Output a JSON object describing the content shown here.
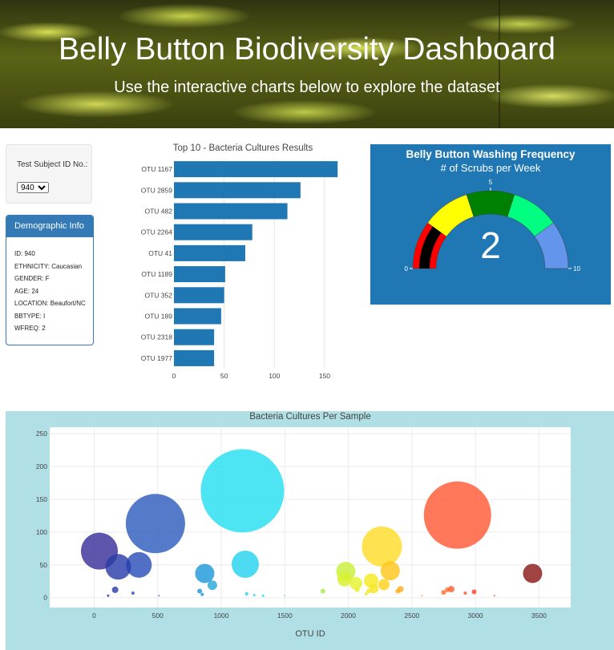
{
  "header": {
    "title": "Belly Button Biodiversity Dashboard",
    "subtitle": "Use the interactive charts below to explore the dataset"
  },
  "selector": {
    "label": "Test Subject ID No.:",
    "selected": "940"
  },
  "demographics": {
    "title": "Demographic Info",
    "rows": [
      "ID: 940",
      "ETHNICITY: Caucasian",
      "GENDER: F",
      "AGE: 24",
      "LOCATION: Beaufort/NC",
      "BBTYPE: I",
      "WFREQ: 2"
    ]
  },
  "colors": {
    "bar": "#1f77b4",
    "panel_blue": "#337ab7",
    "gauge_bg": "#1f77b4",
    "bubble_bg": "#b0dfe5"
  },
  "chart_data": [
    {
      "type": "bar",
      "orientation": "horizontal",
      "title": "Top 10 - Bacteria Cultures Results",
      "categories": [
        "OTU 1167",
        "OTU 2859",
        "OTU 482",
        "OTU 2264",
        "OTU 41",
        "OTU 1189",
        "OTU 352",
        "OTU 189",
        "OTU 2318",
        "OTU 1977"
      ],
      "values": [
        163,
        126,
        113,
        78,
        71,
        51,
        50,
        47,
        40,
        40
      ],
      "xlim": [
        0,
        170
      ],
      "xticks": [
        "0",
        "50",
        "100",
        "150"
      ],
      "grid": true
    },
    {
      "type": "gauge",
      "title": "Belly Button Washing Frequency",
      "subtitle": "# of Scrubs per Week",
      "value": 2,
      "range": [
        0,
        10
      ],
      "tick_labels": [
        "0",
        "5",
        "10"
      ],
      "bands": [
        "#ff0000",
        "#ffff00",
        "#008000",
        "#00ff80",
        "#6495ed"
      ]
    },
    {
      "type": "scatter",
      "variant": "bubble",
      "title": "Bacteria Cultures Per Sample",
      "xlabel": "OTU ID",
      "xlim": [
        -350,
        3750
      ],
      "ylim": [
        -15,
        260
      ],
      "xticks": [
        "0",
        "500",
        "1000",
        "1500",
        "2000",
        "2500",
        "3000",
        "3500"
      ],
      "yticks": [
        "0",
        "50",
        "100",
        "150",
        "200",
        "250"
      ],
      "points": [
        {
          "x": 1167,
          "y": 163,
          "r": 52,
          "color": "#26dff0"
        },
        {
          "x": 2859,
          "y": 126,
          "r": 42,
          "color": "#ff5a36"
        },
        {
          "x": 482,
          "y": 113,
          "r": 37,
          "color": "#2f5dbd"
        },
        {
          "x": 2264,
          "y": 78,
          "r": 25,
          "color": "#ffdc2a"
        },
        {
          "x": 41,
          "y": 71,
          "r": 23,
          "color": "#3a2f9a"
        },
        {
          "x": 1189,
          "y": 51,
          "r": 17,
          "color": "#26d3ee"
        },
        {
          "x": 352,
          "y": 50,
          "r": 16,
          "color": "#2a4fb8"
        },
        {
          "x": 189,
          "y": 47,
          "r": 16,
          "color": "#2b3da8"
        },
        {
          "x": 3450,
          "y": 37,
          "r": 12,
          "color": "#8b1a1a"
        },
        {
          "x": 870,
          "y": 37,
          "r": 12,
          "color": "#1f98d8"
        },
        {
          "x": 1980,
          "y": 40,
          "r": 12,
          "color": "#c9ef3a"
        },
        {
          "x": 2330,
          "y": 41,
          "r": 12,
          "color": "#ffc61a"
        },
        {
          "x": 1970,
          "y": 28,
          "r": 9,
          "color": "#d8f22e"
        },
        {
          "x": 2060,
          "y": 22,
          "r": 8,
          "color": "#e4f230"
        },
        {
          "x": 2180,
          "y": 26,
          "r": 9,
          "color": "#f5ea20"
        },
        {
          "x": 2280,
          "y": 20,
          "r": 7,
          "color": "#ffd21c"
        },
        {
          "x": 930,
          "y": 19,
          "r": 6,
          "color": "#2aa9dc"
        },
        {
          "x": 2200,
          "y": 14,
          "r": 6,
          "color": "#f7e424"
        },
        {
          "x": 2410,
          "y": 13,
          "r": 4,
          "color": "#ffb020"
        },
        {
          "x": 2390,
          "y": 10,
          "r": 3,
          "color": "#ffae20"
        },
        {
          "x": 2780,
          "y": 12,
          "r": 3,
          "color": "#ff6a30"
        },
        {
          "x": 2810,
          "y": 13,
          "r": 4,
          "color": "#ff6030"
        },
        {
          "x": 2990,
          "y": 9,
          "r": 3,
          "color": "#ff4030"
        },
        {
          "x": 2750,
          "y": 8,
          "r": 3,
          "color": "#ff7030"
        },
        {
          "x": 2920,
          "y": 7,
          "r": 2,
          "color": "#ff5030"
        },
        {
          "x": 2070,
          "y": 12,
          "r": 3,
          "color": "#e8f030"
        },
        {
          "x": 2160,
          "y": 10,
          "r": 3,
          "color": "#f2ec28"
        },
        {
          "x": 2140,
          "y": 6,
          "r": 2,
          "color": "#f0ea28"
        },
        {
          "x": 1800,
          "y": 10,
          "r": 3,
          "color": "#a8ec4a"
        },
        {
          "x": 165,
          "y": 12,
          "r": 4,
          "color": "#2b3da8"
        },
        {
          "x": 305,
          "y": 7,
          "r": 2,
          "color": "#2a4fb8"
        },
        {
          "x": 830,
          "y": 10,
          "r": 3,
          "color": "#1f98d8"
        },
        {
          "x": 850,
          "y": 5,
          "r": 2,
          "color": "#1f98d8"
        },
        {
          "x": 1200,
          "y": 6,
          "r": 2,
          "color": "#26d3ee"
        },
        {
          "x": 1260,
          "y": 4,
          "r": 1.5,
          "color": "#26d3ee"
        },
        {
          "x": 1330,
          "y": 3,
          "r": 1.5,
          "color": "#26dcea"
        },
        {
          "x": 1500,
          "y": 3,
          "r": 1,
          "color": "#60e0d0"
        },
        {
          "x": 110,
          "y": 3,
          "r": 1.5,
          "color": "#3a2f9a"
        },
        {
          "x": 510,
          "y": 3,
          "r": 1,
          "color": "#2f5dbd"
        },
        {
          "x": 2580,
          "y": 3,
          "r": 1,
          "color": "#ff9a28"
        },
        {
          "x": 3150,
          "y": 3,
          "r": 1,
          "color": "#ff3a30"
        }
      ]
    }
  ]
}
